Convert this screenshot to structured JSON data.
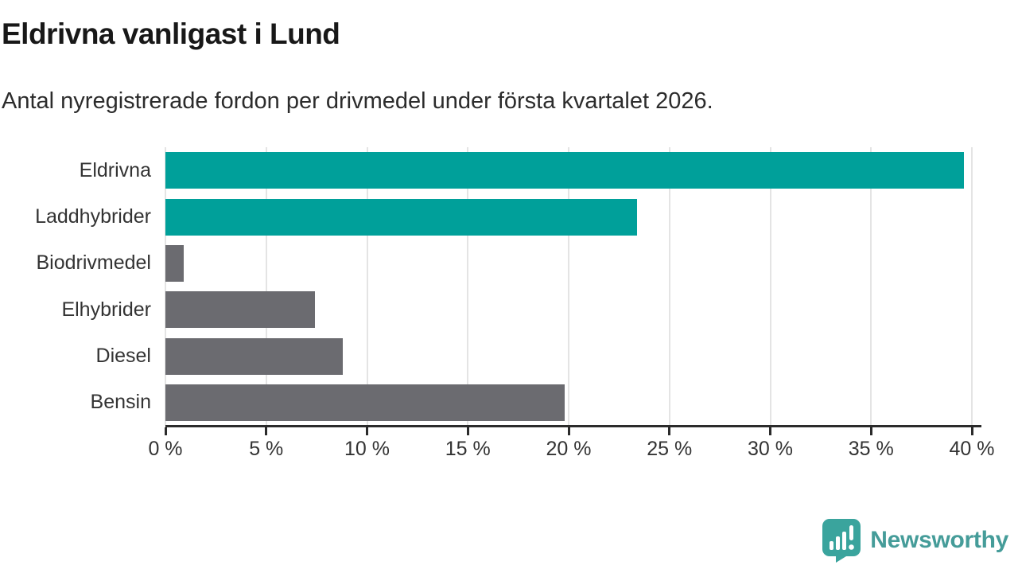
{
  "title": "Eldrivna vanligast i Lund",
  "subtitle": "Antal nyregistrerade fordon per drivmedel under första kvartalet 2026.",
  "chart_data": {
    "type": "bar",
    "orientation": "horizontal",
    "title": "Eldrivna vanligast i Lund",
    "subtitle": "Antal nyregistrerade fordon per drivmedel under första kvartalet 2026.",
    "categories": [
      "Eldrivna",
      "Laddhybrider",
      "Biodrivmedel",
      "Elhybrider",
      "Diesel",
      "Bensin"
    ],
    "values": [
      39.6,
      23.4,
      0.9,
      7.4,
      8.8,
      19.8
    ],
    "unit": "%",
    "bar_colors": [
      "#00a09a",
      "#00a09a",
      "#6b6b70",
      "#6b6b70",
      "#6b6b70",
      "#6b6b70"
    ],
    "highlight_color": "#00a09a",
    "default_color": "#6b6b70",
    "xlabel": "",
    "ylabel": "",
    "xlim": [
      0,
      40
    ],
    "x_ticks": [
      0,
      5,
      10,
      15,
      20,
      25,
      30,
      35,
      40
    ],
    "x_tick_labels": [
      "0 %",
      "5 %",
      "10 %",
      "15 %",
      "20 %",
      "25 %",
      "30 %",
      "35 %",
      "40 %"
    ],
    "grid": "vertical",
    "gridline_color": "#e4e4e4",
    "axis_color": "#2b2b2b",
    "legend": "none"
  },
  "branding": {
    "logo_text": "Newsworthy",
    "logo_text_color": "#459c99",
    "logo_icon_color": "#3aa49d",
    "logo_icon": "newsworthy-chart-bubble-icon"
  }
}
